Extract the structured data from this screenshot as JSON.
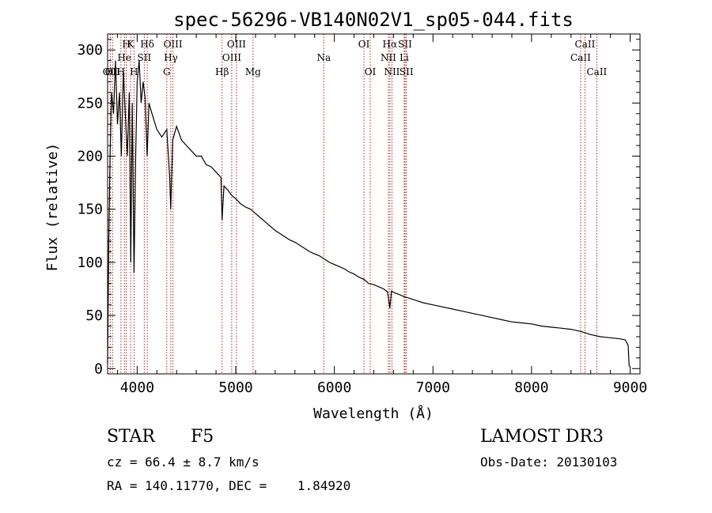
{
  "chart_data": {
    "type": "line",
    "title": "spec-56296-VB140N02V1_sp05-044.fits",
    "xlabel": "Wavelength (Å)",
    "ylabel": "Flux (relative)",
    "xlim": [
      3700,
      9100
    ],
    "ylim": [
      -5,
      315
    ],
    "xticks": [
      4000,
      5000,
      6000,
      7000,
      8000,
      9000
    ],
    "yticks": [
      0,
      50,
      100,
      150,
      200,
      250,
      300
    ],
    "series": [
      {
        "name": "spectrum",
        "x": [
          3700,
          3712,
          3725,
          3740,
          3760,
          3780,
          3800,
          3820,
          3840,
          3860,
          3880,
          3900,
          3920,
          3935,
          3950,
          3968,
          3985,
          4000,
          4020,
          4040,
          4060,
          4080,
          4101,
          4120,
          4150,
          4200,
          4250,
          4300,
          4330,
          4340,
          4360,
          4400,
          4450,
          4500,
          4550,
          4600,
          4650,
          4700,
          4750,
          4800,
          4850,
          4861,
          4880,
          4920,
          4960,
          5000,
          5050,
          5100,
          5150,
          5200,
          5250,
          5300,
          5350,
          5400,
          5450,
          5500,
          5550,
          5600,
          5650,
          5700,
          5750,
          5800,
          5850,
          5900,
          5950,
          6000,
          6050,
          6100,
          6150,
          6200,
          6250,
          6300,
          6350,
          6400,
          6450,
          6500,
          6540,
          6563,
          6580,
          6620,
          6650,
          6700,
          6800,
          6900,
          7000,
          7100,
          7200,
          7300,
          7400,
          7500,
          7600,
          7700,
          7800,
          7900,
          8000,
          8100,
          8200,
          8300,
          8400,
          8500,
          8600,
          8700,
          8800,
          8900,
          8950,
          8980,
          8990
        ],
        "y": [
          5,
          120,
          200,
          260,
          240,
          290,
          230,
          260,
          200,
          280,
          240,
          200,
          260,
          100,
          250,
          90,
          200,
          270,
          290,
          250,
          270,
          255,
          200,
          250,
          240,
          225,
          218,
          225,
          180,
          150,
          215,
          228,
          215,
          210,
          205,
          200,
          200,
          192,
          190,
          185,
          180,
          140,
          172,
          168,
          163,
          160,
          155,
          152,
          150,
          146,
          142,
          138,
          134,
          130,
          127,
          124,
          121,
          119,
          116,
          113,
          110,
          108,
          106,
          103,
          100,
          98,
          96,
          94,
          91,
          89,
          86,
          84,
          80,
          79,
          77,
          75,
          72,
          57,
          73,
          71,
          70,
          68,
          65,
          62,
          60,
          58,
          56,
          54,
          52,
          50,
          48,
          46,
          44,
          43,
          42,
          40,
          39,
          38,
          37,
          35,
          32,
          30,
          29,
          28,
          27,
          22,
          2
        ]
      }
    ],
    "lines": [
      {
        "x": 3727,
        "labels": [
          "OII"
        ],
        "row": 2
      },
      {
        "x": 3750,
        "labels": [
          "OII"
        ],
        "row": 2
      },
      {
        "x": 3835,
        "labels": [
          "H"
        ],
        "row": 2
      },
      {
        "x": 3870,
        "labels": [
          "He"
        ],
        "row": 1
      },
      {
        "x": 3889,
        "labels": [
          "H"
        ],
        "row": 0
      },
      {
        "x": 3934,
        "labels": [
          "K"
        ],
        "row": 0
      },
      {
        "x": 3968,
        "labels": [
          "H"
        ],
        "row": 2
      },
      {
        "x": 4072,
        "labels": [
          "SII"
        ],
        "row": 1
      },
      {
        "x": 4102,
        "labels": [
          "Hδ"
        ],
        "row": 0
      },
      {
        "x": 4300,
        "labels": [
          "G"
        ],
        "row": 2
      },
      {
        "x": 4341,
        "labels": [
          "Hγ"
        ],
        "row": 1
      },
      {
        "x": 4363,
        "labels": [
          "OIII"
        ],
        "row": 0
      },
      {
        "x": 4861,
        "labels": [
          "Hβ"
        ],
        "row": 2
      },
      {
        "x": 4959,
        "labels": [
          "OIII"
        ],
        "row": 1
      },
      {
        "x": 5007,
        "labels": [
          "OIII"
        ],
        "row": 0
      },
      {
        "x": 5175,
        "labels": [
          "Mg"
        ],
        "row": 2
      },
      {
        "x": 5893,
        "labels": [
          "Na"
        ],
        "row": 1
      },
      {
        "x": 6300,
        "labels": [
          "OI"
        ],
        "row": 0
      },
      {
        "x": 6364,
        "labels": [
          "OI"
        ],
        "row": 2
      },
      {
        "x": 6548,
        "labels": [
          "NII"
        ],
        "row": 1
      },
      {
        "x": 6563,
        "labels": [
          "Hα"
        ],
        "row": 0
      },
      {
        "x": 6584,
        "labels": [
          "NII"
        ],
        "row": 2
      },
      {
        "x": 6708,
        "labels": [
          "Li"
        ],
        "row": 1
      },
      {
        "x": 6717,
        "labels": [
          "SII"
        ],
        "row": 0
      },
      {
        "x": 6731,
        "labels": [
          "SII"
        ],
        "row": 2
      },
      {
        "x": 8498,
        "labels": [
          "CaII"
        ],
        "row": 1
      },
      {
        "x": 8542,
        "labels": [
          "CaII"
        ],
        "row": 0
      },
      {
        "x": 8662,
        "labels": [
          "CaII"
        ],
        "row": 2
      }
    ]
  },
  "info": {
    "class_label": "STAR",
    "subclass": "F5",
    "cz": "cz = 66.4 ± 8.7 km/s",
    "radec": "RA = 140.11770, DEC =    1.84920",
    "survey": "LAMOST DR3",
    "obs_date": "Obs-Date: 20130103"
  },
  "colors": {
    "line_color": "#b22222",
    "spectrum": "#000000"
  }
}
